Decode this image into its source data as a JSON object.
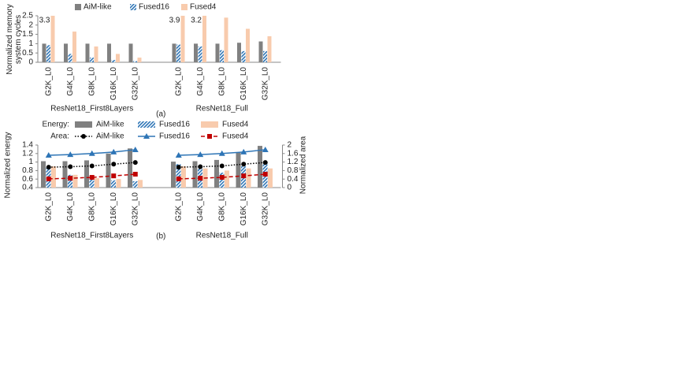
{
  "chart_data": [
    {
      "type": "bar",
      "ylabel": "Normalized memory system cycles",
      "caption": "(a)",
      "groups": [
        "ResNet18_First8Layers",
        "ResNet18_Full"
      ],
      "categories": [
        "G2K_L0",
        "G4K_L0",
        "G8K_L0",
        "G16K_L0",
        "G32K_L0",
        "G2K_L0",
        "G4K_L0",
        "G8K_L0",
        "G16K_L0",
        "G32K_L0"
      ],
      "ylim": [
        0,
        2.5
      ],
      "yticks": [
        0,
        0.5,
        1,
        1.5,
        2,
        2.5
      ],
      "series": [
        {
          "name": "AiM-like",
          "color": "#808080",
          "values": [
            1,
            1,
            1,
            1,
            1,
            1,
            1,
            1,
            1.05,
            1.12
          ]
        },
        {
          "name": "Fused16",
          "color": "#2e75b6",
          "pattern": "hatch",
          "values": [
            0.92,
            0.45,
            0.25,
            0.12,
            0.06,
            0.95,
            0.85,
            0.65,
            0.6,
            0.6
          ]
        },
        {
          "name": "Fused4",
          "color": "#f8cbad",
          "values": [
            3.3,
            1.65,
            0.85,
            0.45,
            0.25,
            3.9,
            3.2,
            2.4,
            1.8,
            1.4
          ],
          "value_labels": [
            "3.3",
            null,
            null,
            null,
            null,
            "3.9",
            "3.2",
            null,
            null,
            null
          ]
        }
      ]
    },
    {
      "type": "combo",
      "ylabel": "Normalized energy",
      "y2label": "Normalized area",
      "caption": "(b)",
      "legend_rows": [
        "Energy:",
        "Area:"
      ],
      "groups": [
        "ResNet18_First8Layers",
        "ResNet18_Full"
      ],
      "categories": [
        "G2K_L0",
        "G4K_L0",
        "G8K_L0",
        "G16K_L0",
        "G32K_L0",
        "G2K_L0",
        "G4K_L0",
        "G8K_L0",
        "G16K_L0",
        "G32K_L0"
      ],
      "ylim": [
        0.4,
        1.4
      ],
      "yticks": [
        0.4,
        0.6,
        0.8,
        1,
        1.2,
        1.4
      ],
      "y2lim": [
        0,
        2
      ],
      "y2ticks": [
        0,
        0.4,
        0.8,
        1.2,
        1.6,
        2
      ],
      "series": [
        {
          "name": "AiM-like",
          "kind": "bar",
          "color": "#808080",
          "values": [
            1.02,
            1.02,
            1.04,
            1.2,
            1.32,
            1.01,
            1.02,
            1.05,
            1.22,
            1.38
          ]
        },
        {
          "name": "Fused16",
          "kind": "bar",
          "color": "#2e75b6",
          "pattern": "hatch",
          "values": [
            0.9,
            0.7,
            0.62,
            0.57,
            0.55,
            0.95,
            0.85,
            0.75,
            0.9,
            0.95
          ]
        },
        {
          "name": "Fused4",
          "kind": "bar",
          "color": "#f8cbad",
          "values": [
            0.9,
            0.7,
            0.62,
            0.6,
            0.58,
            0.9,
            0.85,
            0.8,
            0.85,
            0.85
          ]
        },
        {
          "name": "AiM-like",
          "kind": "line",
          "axis": "y2",
          "color": "#000000",
          "marker": "circle",
          "dash": "dotted",
          "values": [
            0.96,
            0.98,
            1.02,
            1.1,
            1.18,
            0.96,
            0.98,
            1.02,
            1.1,
            1.18
          ]
        },
        {
          "name": "Fused16",
          "kind": "line",
          "axis": "y2",
          "color": "#2e75b6",
          "marker": "triangle",
          "dash": "solid",
          "values": [
            1.52,
            1.55,
            1.6,
            1.67,
            1.78,
            1.52,
            1.55,
            1.6,
            1.67,
            1.78
          ]
        },
        {
          "name": "Fused4",
          "kind": "line",
          "axis": "y2",
          "color": "#c00000",
          "marker": "square",
          "dash": "dashed",
          "values": [
            0.41,
            0.44,
            0.48,
            0.55,
            0.63,
            0.41,
            0.44,
            0.48,
            0.55,
            0.63
          ]
        }
      ]
    }
  ]
}
